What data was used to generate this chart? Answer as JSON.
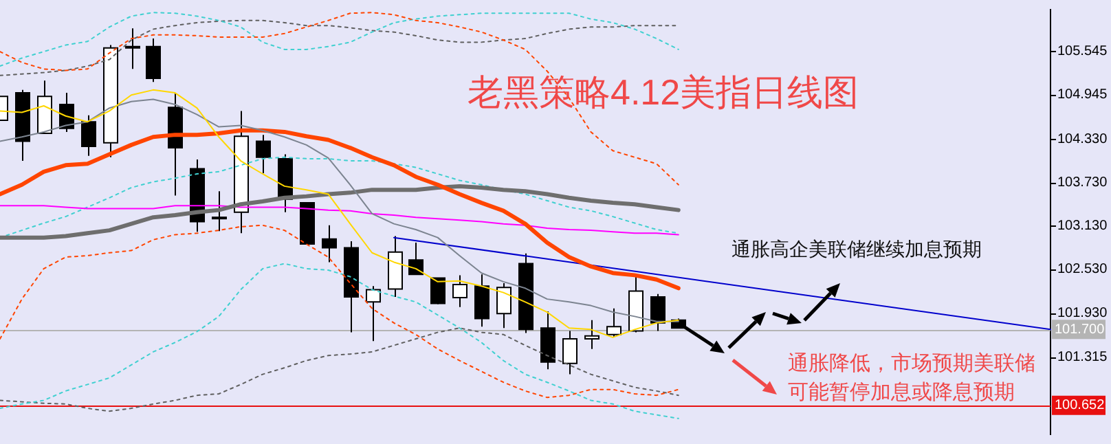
{
  "chart_data": {
    "type": "candlestick",
    "title": "老黑策略4.12美指日线图",
    "categories": [
      null,
      null,
      null,
      null,
      null,
      null,
      null,
      null,
      null,
      null,
      null,
      null,
      null,
      null,
      null,
      null,
      null,
      null,
      null,
      null,
      null,
      null,
      null,
      null,
      null,
      null,
      null,
      null,
      null,
      null,
      null,
      null,
      null,
      null,
      null,
      null,
      null,
      null,
      null,
      null,
      null,
      null,
      null,
      null,
      null,
      null,
      null,
      null,
      null
    ],
    "ohlc": [
      [
        104.59,
        104.92,
        104.59,
        104.92
      ],
      [
        104.97,
        105.01,
        104.03,
        104.3
      ],
      [
        104.41,
        105.14,
        104.41,
        104.92
      ],
      [
        104.81,
        104.97,
        104.43,
        104.48
      ],
      [
        104.57,
        104.66,
        104.1,
        104.23
      ],
      [
        104.28,
        105.63,
        104.08,
        105.59
      ],
      [
        105.59,
        105.86,
        105.3,
        105.61
      ],
      [
        105.61,
        105.72,
        105.12,
        105.17
      ],
      [
        104.77,
        104.97,
        103.55,
        104.21
      ],
      [
        103.92,
        104.05,
        103.05,
        103.19
      ],
      [
        103.25,
        103.61,
        103.06,
        103.25
      ],
      [
        103.32,
        104.72,
        103.03,
        104.37
      ],
      [
        104.3,
        104.39,
        103.86,
        104.08
      ],
      [
        104.06,
        104.12,
        103.32,
        103.5
      ],
      [
        103.45,
        103.45,
        102.88,
        102.88
      ],
      [
        102.95,
        103.14,
        102.63,
        102.83
      ],
      [
        102.83,
        102.92,
        101.66,
        102.15
      ],
      [
        102.08,
        102.3,
        101.54,
        102.25
      ],
      [
        102.26,
        102.99,
        102.15,
        102.77
      ],
      [
        102.66,
        102.9,
        102.46,
        102.46
      ],
      [
        102.41,
        102.41,
        102.05,
        102.06
      ],
      [
        102.14,
        102.45,
        102.01,
        102.32
      ],
      [
        102.3,
        102.46,
        101.74,
        101.85
      ],
      [
        101.92,
        102.34,
        101.72,
        102.28
      ],
      [
        102.61,
        102.75,
        101.65,
        101.7
      ],
      [
        101.72,
        101.95,
        101.15,
        101.25
      ],
      [
        101.23,
        101.68,
        101.08,
        101.57
      ],
      [
        101.57,
        101.83,
        101.43,
        101.61
      ],
      [
        101.63,
        101.99,
        101.59,
        101.74
      ],
      [
        101.68,
        102.43,
        101.66,
        102.23
      ],
      [
        102.15,
        102.19,
        101.68,
        101.79
      ],
      [
        101.83,
        101.85,
        101.72,
        101.72
      ],
      null,
      null,
      null,
      null,
      null,
      null,
      null,
      null,
      null,
      null,
      null,
      null,
      null,
      null,
      null,
      null,
      null
    ],
    "series": [
      {
        "type": "line",
        "color": "#ffd700",
        "values": [
          104.72,
          104.7,
          104.79,
          104.65,
          104.57,
          104.72,
          104.94,
          105.01,
          104.97,
          104.76,
          104.36,
          104.03,
          103.85,
          103.68,
          103.63,
          103.57,
          103.16,
          102.76,
          102.63,
          102.54,
          102.36,
          102.37,
          102.3,
          102.21,
          102.08,
          101.94,
          101.72,
          101.7,
          101.59,
          101.7,
          101.79,
          101.83,
          null,
          null,
          null,
          null,
          null,
          null,
          null,
          null,
          null,
          null,
          null,
          null,
          null,
          null,
          null,
          null,
          null
        ]
      },
      {
        "type": "line",
        "color": "#7c8490",
        "values": [
          104.3,
          104.36,
          104.43,
          104.52,
          104.57,
          104.76,
          104.85,
          104.88,
          104.81,
          104.67,
          104.5,
          104.52,
          104.45,
          104.36,
          104.25,
          104.07,
          103.7,
          103.3,
          103.16,
          103.08,
          102.97,
          102.72,
          102.48,
          102.36,
          102.27,
          102.12,
          102.08,
          102.03,
          101.94,
          101.88,
          101.81,
          101.81,
          null,
          null,
          null,
          null,
          null,
          null,
          null,
          null,
          null,
          null,
          null,
          null,
          null,
          null,
          null,
          null,
          null
        ]
      },
      {
        "type": "line",
        "color": "#ff4500",
        "values": [
          103.57,
          103.7,
          103.88,
          103.97,
          103.99,
          104.12,
          104.25,
          104.36,
          104.39,
          104.39,
          104.41,
          104.45,
          104.45,
          104.43,
          104.37,
          104.32,
          104.21,
          104.08,
          103.97,
          103.81,
          103.7,
          103.57,
          103.45,
          103.34,
          103.16,
          102.9,
          102.7,
          102.57,
          102.48,
          102.45,
          102.39,
          102.27,
          null,
          null,
          null,
          null,
          null,
          null,
          null,
          null,
          null,
          null,
          null,
          null,
          null,
          null,
          null,
          null,
          null
        ]
      },
      {
        "type": "line",
        "color": "#6e6e6e",
        "values": [
          102.97,
          102.97,
          102.97,
          102.99,
          103.03,
          103.07,
          103.16,
          103.25,
          103.28,
          103.32,
          103.35,
          103.43,
          103.47,
          103.52,
          103.54,
          103.57,
          103.59,
          103.63,
          103.63,
          103.63,
          103.66,
          103.68,
          103.66,
          103.63,
          103.61,
          103.57,
          103.52,
          103.48,
          103.45,
          103.43,
          103.39,
          103.35,
          null,
          null,
          null,
          null,
          null,
          null,
          null,
          null,
          null,
          null,
          null,
          null,
          null,
          null,
          null,
          null,
          null
        ]
      },
      {
        "type": "line",
        "color": "#ff00ff",
        "values": [
          103.41,
          103.41,
          103.41,
          103.39,
          103.37,
          103.37,
          103.37,
          103.37,
          103.41,
          103.41,
          103.41,
          103.39,
          103.39,
          103.39,
          103.37,
          103.35,
          103.34,
          103.3,
          103.28,
          103.25,
          103.23,
          103.21,
          103.19,
          103.16,
          103.14,
          103.1,
          103.08,
          103.07,
          103.05,
          103.03,
          103.03,
          103.01,
          null,
          null,
          null,
          null,
          null,
          null,
          null,
          null,
          null,
          null,
          null,
          null,
          null,
          null,
          null,
          null,
          null
        ]
      },
      {
        "type": "line",
        "color": "#ff4500",
        "line_style": "dotted",
        "values": [
          105.54,
          105.39,
          105.3,
          105.28,
          105.3,
          105.52,
          105.72,
          105.77,
          105.77,
          105.76,
          105.74,
          105.74,
          105.74,
          105.79,
          105.88,
          105.97,
          106.07,
          106.08,
          106.05,
          105.97,
          105.94,
          105.88,
          105.81,
          105.7,
          105.57,
          105.27,
          104.9,
          104.43,
          104.17,
          104.08,
          103.99,
          103.7,
          null,
          null,
          null,
          null,
          null,
          null,
          null,
          null,
          null,
          null,
          null,
          null,
          null,
          null,
          null,
          null,
          null
        ]
      },
      {
        "type": "line",
        "color": "#ff4500",
        "line_style": "dotted",
        "values": [
          101.57,
          102.12,
          102.54,
          102.7,
          102.72,
          102.76,
          102.79,
          102.94,
          103.01,
          103.03,
          103.07,
          103.12,
          103.14,
          103.07,
          102.88,
          102.7,
          102.34,
          101.99,
          101.79,
          101.63,
          101.43,
          101.27,
          101.12,
          100.97,
          100.85,
          100.76,
          100.79,
          100.87,
          100.87,
          100.81,
          100.79,
          100.87,
          null,
          null,
          null,
          null,
          null,
          null,
          null,
          null,
          null,
          null,
          null,
          null,
          null,
          null,
          null,
          null,
          null
        ]
      },
      {
        "type": "line",
        "color": "#40d0d0",
        "line_style": "dotted",
        "values": [
          105.34,
          105.45,
          105.54,
          105.63,
          105.68,
          105.88,
          106.03,
          106.08,
          106.07,
          106.03,
          105.97,
          105.88,
          105.67,
          105.57,
          105.57,
          105.61,
          105.67,
          105.81,
          105.94,
          105.99,
          106.03,
          106.05,
          106.07,
          106.07,
          106.07,
          106.07,
          106.07,
          105.99,
          105.94,
          105.85,
          105.72,
          105.57,
          null,
          null,
          null,
          null,
          null,
          null,
          null,
          null,
          null,
          null,
          null,
          null,
          null,
          null,
          null,
          null,
          null
        ]
      },
      {
        "type": "line",
        "color": "#40d0d0",
        "line_style": "dotted",
        "values": [
          102.97,
          103.07,
          103.17,
          103.26,
          103.39,
          103.52,
          103.66,
          103.74,
          103.79,
          103.85,
          103.88,
          103.97,
          104.06,
          104.08,
          104.06,
          104.06,
          104.03,
          104.03,
          103.99,
          103.94,
          103.85,
          103.76,
          103.7,
          103.63,
          103.57,
          103.48,
          103.39,
          103.34,
          103.26,
          103.17,
          103.08,
          103.03,
          null,
          null,
          null,
          null,
          null,
          null,
          null,
          null,
          null,
          null,
          null,
          null,
          null,
          null,
          null,
          null,
          null
        ]
      },
      {
        "type": "line",
        "color": "#40d0d0",
        "line_style": "dotted",
        "values": [
          100.61,
          100.67,
          100.72,
          100.85,
          100.94,
          101.03,
          101.21,
          101.39,
          101.52,
          101.67,
          101.88,
          102.25,
          102.54,
          102.61,
          102.54,
          102.52,
          102.43,
          102.25,
          102.16,
          102.08,
          101.9,
          101.72,
          101.52,
          101.27,
          101.08,
          100.97,
          100.85,
          100.72,
          100.67,
          100.57,
          100.52,
          100.47,
          null,
          null,
          null,
          null,
          null,
          null,
          null,
          null,
          null,
          null,
          null,
          null,
          null,
          null,
          null,
          null,
          null
        ]
      },
      {
        "type": "line",
        "color": "#606060",
        "line_style": "dotted",
        "values": [
          105.21,
          105.23,
          105.25,
          105.28,
          105.34,
          105.43,
          105.7,
          105.85,
          105.9,
          105.94,
          105.96,
          105.97,
          105.97,
          105.94,
          105.9,
          105.9,
          105.87,
          105.83,
          105.81,
          105.76,
          105.7,
          105.67,
          105.67,
          105.7,
          105.72,
          105.79,
          105.85,
          105.88,
          105.88,
          105.9,
          105.9,
          105.9,
          null,
          null,
          null,
          null,
          null,
          null,
          null,
          null,
          null,
          null,
          null,
          null,
          null,
          null,
          null,
          null,
          null
        ]
      },
      {
        "type": "line",
        "color": "#606060",
        "line_style": "dotted",
        "values": [
          100.72,
          100.7,
          100.68,
          100.67,
          100.61,
          100.57,
          100.61,
          100.67,
          100.72,
          100.79,
          100.81,
          100.94,
          101.08,
          101.17,
          101.27,
          101.34,
          101.36,
          101.39,
          101.48,
          101.57,
          101.66,
          101.72,
          101.66,
          101.63,
          101.48,
          101.34,
          101.21,
          101.08,
          100.99,
          100.9,
          100.85,
          100.79,
          null,
          null,
          null,
          null,
          null,
          null,
          null,
          null,
          null,
          null,
          null,
          null,
          null,
          null,
          null,
          null,
          null
        ]
      },
      {
        "type": "line",
        "color": "#0000cc",
        "values": [
          null,
          null,
          null,
          null,
          null,
          null,
          null,
          null,
          null,
          null,
          null,
          null,
          null,
          null,
          null,
          null,
          null,
          null,
          102.97,
          null,
          null,
          null,
          null,
          null,
          null,
          null,
          null,
          null,
          null,
          null,
          null,
          null,
          null,
          null,
          null,
          null,
          null,
          null,
          null,
          null,
          null,
          null,
          null,
          null,
          null,
          null,
          null,
          null,
          101.7
        ]
      }
    ],
    "ylim": [
      100.25,
      106.12
    ],
    "yticks": [
      {
        "value": 101.315,
        "label": "101.315"
      },
      {
        "value": 101.93,
        "label": "101.930"
      },
      {
        "value": 102.53,
        "label": "102.530"
      },
      {
        "value": 103.13,
        "label": "103.130"
      },
      {
        "value": 103.73,
        "label": "103.730"
      },
      {
        "value": 104.33,
        "label": "104.330"
      },
      104.945,
      105.545
    ],
    "ref_lines": [
      {
        "axis": "y",
        "value": 101.7,
        "label": "101.700",
        "color": "#b4b4b4"
      },
      {
        "axis": "y",
        "value": 100.652,
        "label": "100.652",
        "color": "#e81010"
      }
    ],
    "annotations": [
      "通胀高企美联储继续加息预期",
      "通胀降低，市场预期美联储可能暂停加息或降息预期"
    ],
    "tick_labels": "y",
    "grid": false,
    "legend": false,
    "marker": "none"
  }
}
